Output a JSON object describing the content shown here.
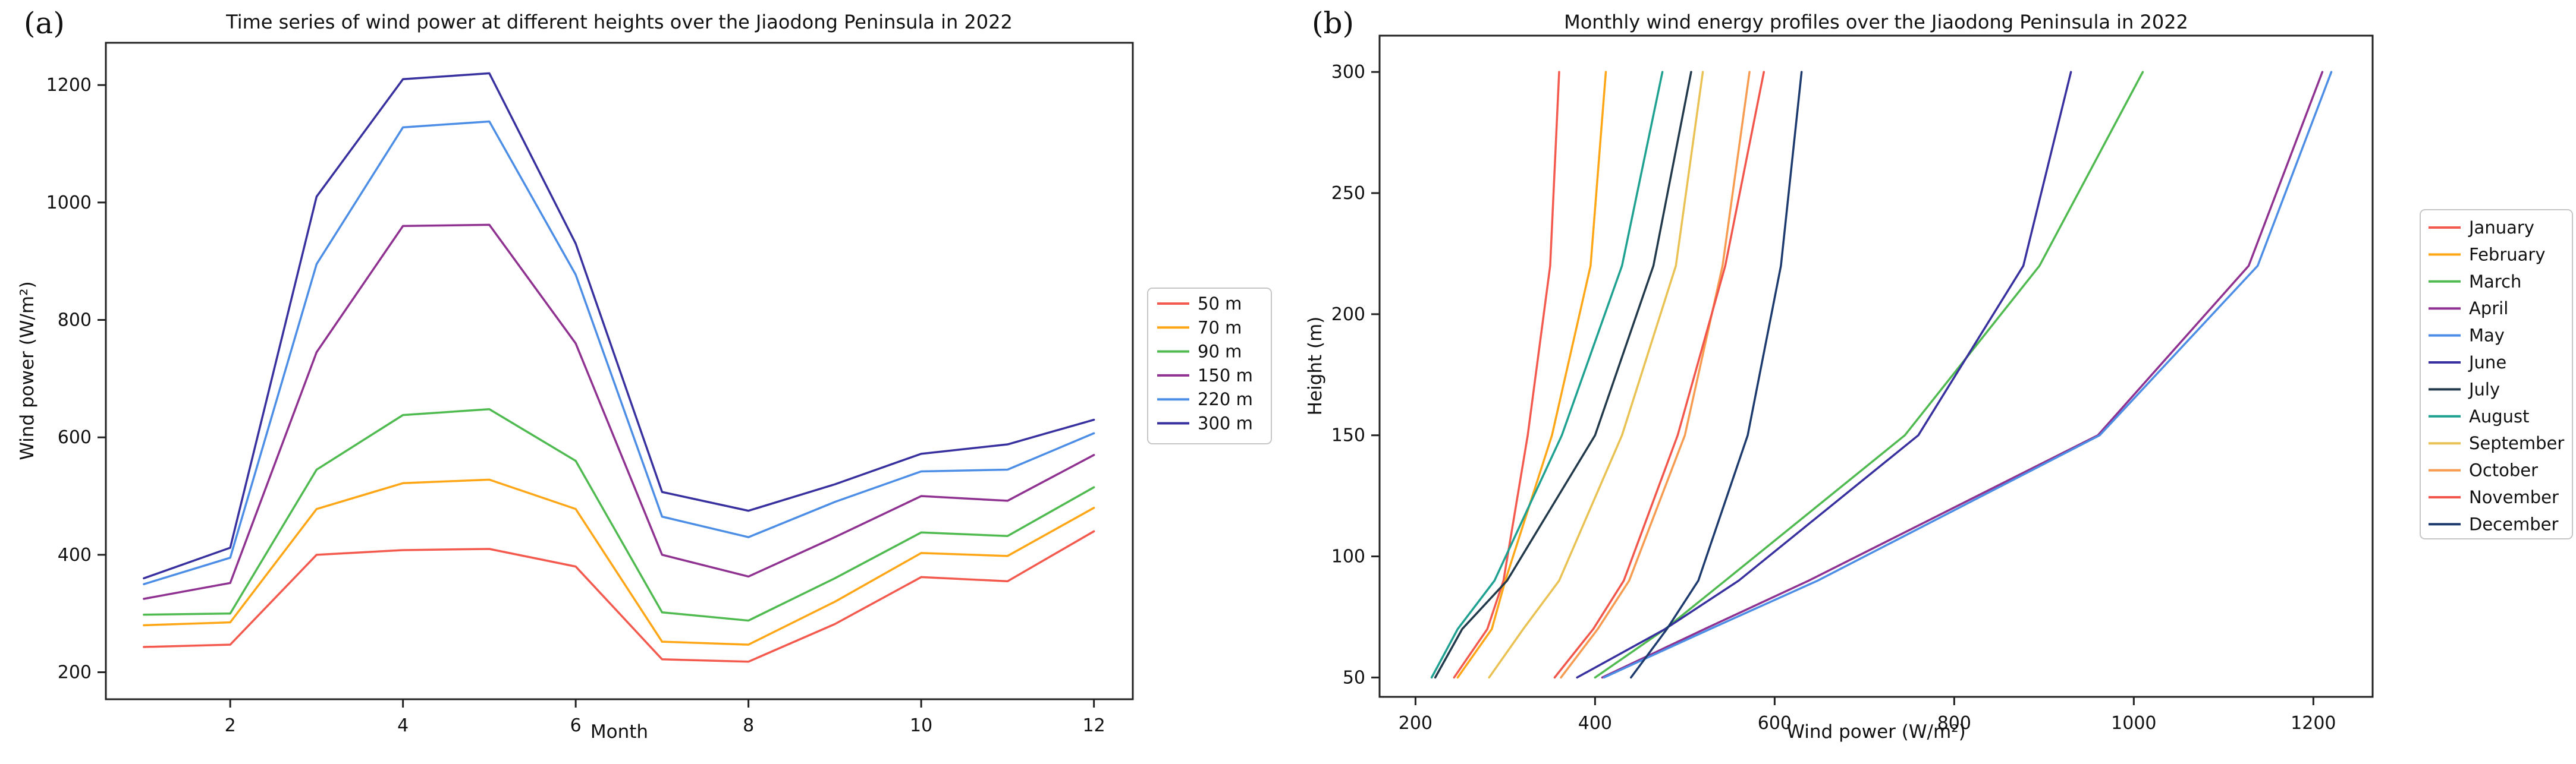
{
  "figure": {
    "background": "#ffffff",
    "text_color": "#111111",
    "axis_color": "#222222"
  },
  "chart_data": [
    {
      "id": "a",
      "type": "line",
      "panel_label": "(a)",
      "title": "Time series of wind power at different heights over the Jiaodong Peninsula in 2022",
      "xlabel": "Month",
      "ylabel": "Wind power (W/m²)",
      "x": [
        1,
        2,
        3,
        4,
        5,
        6,
        7,
        8,
        9,
        10,
        11,
        12
      ],
      "x_ticks": [
        2,
        4,
        6,
        8,
        10,
        12
      ],
      "y_ticks": [
        200,
        400,
        600,
        800,
        1000,
        1200
      ],
      "xlim": [
        0.56,
        12.45
      ],
      "ylim": [
        154,
        1272
      ],
      "grid": false,
      "legend_position": "right-outside",
      "series": [
        {
          "name": "50 m",
          "color": "#f4594e",
          "values": [
            243,
            247,
            400,
            408,
            410,
            380,
            222,
            218,
            282,
            362,
            355,
            440
          ]
        },
        {
          "name": "70 m",
          "color": "#ffa617",
          "values": [
            280,
            285,
            478,
            522,
            528,
            478,
            252,
            247,
            320,
            403,
            398,
            480
          ]
        },
        {
          "name": "90 m",
          "color": "#4fba4f",
          "values": [
            298,
            300,
            545,
            638,
            648,
            560,
            302,
            288,
            360,
            438,
            432,
            515
          ]
        },
        {
          "name": "150 m",
          "color": "#8f3190",
          "values": [
            325,
            352,
            745,
            960,
            962,
            760,
            400,
            363,
            430,
            500,
            492,
            570
          ]
        },
        {
          "name": "220 m",
          "color": "#4c8ee6",
          "values": [
            350,
            395,
            895,
            1128,
            1138,
            877,
            465,
            430,
            490,
            542,
            545,
            607
          ]
        },
        {
          "name": "300 m",
          "color": "#37309e",
          "values": [
            360,
            412,
            1010,
            1210,
            1220,
            930,
            507,
            475,
            520,
            572,
            588,
            630
          ]
        }
      ]
    },
    {
      "id": "b",
      "type": "line",
      "panel_label": "(b)",
      "title": "Monthly wind energy profiles over the Jiaodong Peninsula in 2022",
      "xlabel": "Wind power (W/m²)",
      "ylabel": "Height (m)",
      "y": [
        50,
        70,
        90,
        150,
        220,
        300
      ],
      "x_ticks": [
        200,
        400,
        600,
        800,
        1000,
        1200
      ],
      "y_ticks": [
        50,
        100,
        150,
        200,
        250,
        300
      ],
      "xlim": [
        160,
        1266
      ],
      "ylim": [
        42,
        315
      ],
      "grid": false,
      "legend_position": "right-outside",
      "series": [
        {
          "name": "January",
          "color": "#f4594e",
          "values": [
            243,
            280,
            298,
            325,
            350,
            360
          ]
        },
        {
          "name": "February",
          "color": "#ffa617",
          "values": [
            247,
            285,
            300,
            352,
            395,
            412
          ]
        },
        {
          "name": "March",
          "color": "#4fba4f",
          "values": [
            400,
            478,
            545,
            745,
            895,
            1010
          ]
        },
        {
          "name": "April",
          "color": "#8f3190",
          "values": [
            408,
            522,
            638,
            960,
            1128,
            1210
          ]
        },
        {
          "name": "May",
          "color": "#4c8ee6",
          "values": [
            410,
            528,
            648,
            962,
            1138,
            1220
          ]
        },
        {
          "name": "June",
          "color": "#37309e",
          "values": [
            380,
            478,
            560,
            760,
            877,
            930
          ]
        },
        {
          "name": "July",
          "color": "#21394a",
          "values": [
            222,
            252,
            302,
            400,
            465,
            507
          ]
        },
        {
          "name": "August",
          "color": "#1fa191",
          "values": [
            218,
            247,
            288,
            363,
            430,
            475
          ]
        },
        {
          "name": "September",
          "color": "#e9c253",
          "values": [
            282,
            320,
            360,
            430,
            490,
            520
          ]
        },
        {
          "name": "October",
          "color": "#f79b51",
          "values": [
            362,
            403,
            438,
            500,
            542,
            572
          ]
        },
        {
          "name": "November",
          "color": "#f2564a",
          "values": [
            355,
            398,
            432,
            492,
            545,
            588
          ]
        },
        {
          "name": "December",
          "color": "#1d3a6e",
          "values": [
            440,
            480,
            515,
            570,
            607,
            630
          ]
        }
      ]
    }
  ]
}
